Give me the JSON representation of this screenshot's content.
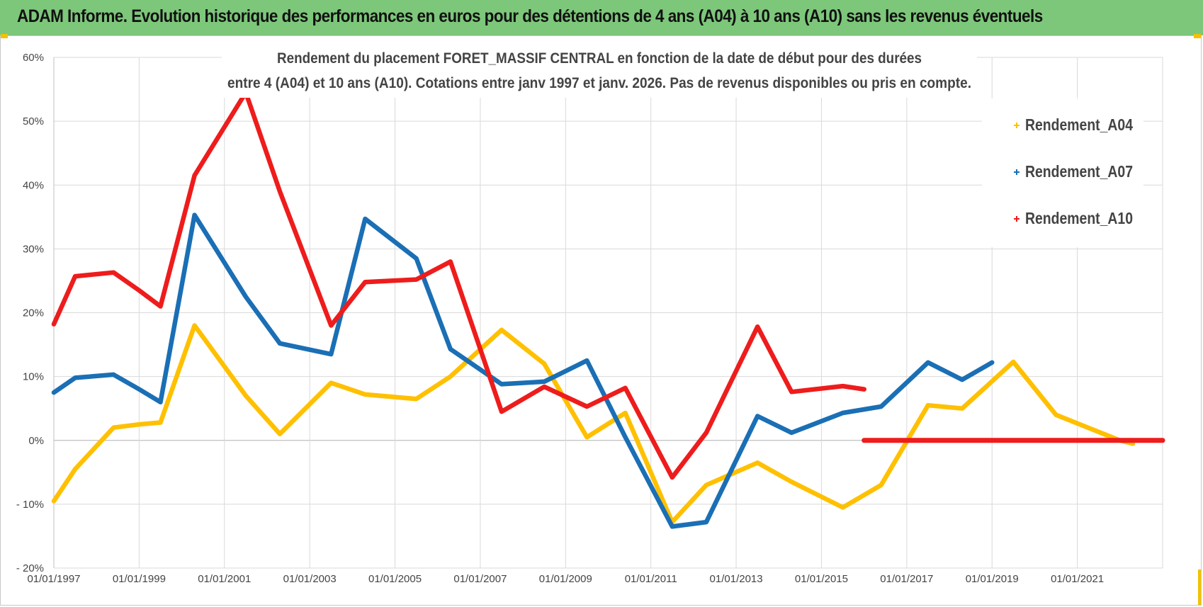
{
  "banner": {
    "title": "ADAM Informe. Evolution historique des performances en euros pour des détentions de 4 ans (A04) à 10 ans (A10) sans les revenus éventuels"
  },
  "chart_data": {
    "type": "line",
    "title_line1": "Rendement du placement FORET_MASSIF CENTRAL en fonction de la date de début pour des durées",
    "title_line2": "entre 4 (A04) et 10 ans (A10).  Cotations entre janv 1997 et janv. 2026. Pas de revenus disponibles ou pris en compte.",
    "xlabel": "",
    "ylabel": "",
    "xlim": [
      1997.0,
      2023.0
    ],
    "ylim": [
      -20,
      60
    ],
    "y_ticks": [
      -20,
      -10,
      0,
      10,
      20,
      30,
      40,
      50,
      60
    ],
    "y_tick_labels": [
      "- 20%",
      "- 10%",
      "0%",
      "10%",
      "20%",
      "30%",
      "40%",
      "50%",
      "60%"
    ],
    "x_ticks": [
      1997,
      1999,
      2001,
      2003,
      2005,
      2007,
      2009,
      2011,
      2013,
      2015,
      2017,
      2019,
      2021
    ],
    "x_tick_labels": [
      "01/01/1997",
      "01/01/1999",
      "01/01/2001",
      "01/01/2003",
      "01/01/2005",
      "01/01/2007",
      "01/01/2009",
      "01/01/2011",
      "01/01/2013",
      "01/01/2015",
      "01/01/2017",
      "01/01/2019",
      "01/01/2021"
    ],
    "vertical_grid": [
      1997,
      1999,
      2001,
      2003,
      2005,
      2007,
      2009,
      2011,
      2013,
      2015,
      2017,
      2019,
      2021,
      2023
    ],
    "legend_position": "top-right",
    "series": [
      {
        "name": "Rendement_A04",
        "color": "#ffc000",
        "points": [
          [
            1997.0,
            -9.5
          ],
          [
            1997.5,
            -4.5
          ],
          [
            1998.4,
            2.0
          ],
          [
            1999.0,
            2.5
          ],
          [
            1999.5,
            2.8
          ],
          [
            2000.3,
            18.0
          ],
          [
            2001.5,
            7.0
          ],
          [
            2002.3,
            1.0
          ],
          [
            2003.5,
            9.0
          ],
          [
            2004.3,
            7.2
          ],
          [
            2005.5,
            6.5
          ],
          [
            2006.3,
            10.0
          ],
          [
            2007.5,
            17.3
          ],
          [
            2008.5,
            12.0
          ],
          [
            2009.5,
            0.5
          ],
          [
            2010.4,
            4.3
          ],
          [
            2011.5,
            -12.8
          ],
          [
            2012.3,
            -7.0
          ],
          [
            2013.5,
            -3.5
          ],
          [
            2014.3,
            -6.5
          ],
          [
            2015.5,
            -10.5
          ],
          [
            2016.4,
            -7.0
          ],
          [
            2017.5,
            5.5
          ],
          [
            2018.3,
            5.0
          ],
          [
            2019.5,
            12.3
          ],
          [
            2020.5,
            4.0
          ],
          [
            2022.0,
            0.0
          ],
          [
            2022.3,
            -0.5
          ]
        ]
      },
      {
        "name": "Rendement_A07",
        "color": "#1a6fb5",
        "points": [
          [
            1997.0,
            7.5
          ],
          [
            1997.5,
            9.8
          ],
          [
            1998.4,
            10.3
          ],
          [
            1999.0,
            8.0
          ],
          [
            1999.5,
            6.0
          ],
          [
            2000.3,
            35.3
          ],
          [
            2001.5,
            22.5
          ],
          [
            2002.3,
            15.2
          ],
          [
            2003.5,
            13.5
          ],
          [
            2004.3,
            34.7
          ],
          [
            2005.5,
            28.5
          ],
          [
            2006.3,
            14.3
          ],
          [
            2007.5,
            8.8
          ],
          [
            2008.5,
            9.2
          ],
          [
            2009.5,
            12.5
          ],
          [
            2010.4,
            0.5
          ],
          [
            2011.5,
            -13.5
          ],
          [
            2012.3,
            -12.8
          ],
          [
            2013.5,
            3.8
          ],
          [
            2014.3,
            1.2
          ],
          [
            2015.5,
            4.3
          ],
          [
            2016.4,
            5.3
          ],
          [
            2017.5,
            12.2
          ],
          [
            2018.3,
            9.5
          ],
          [
            2019.0,
            12.2
          ]
        ]
      },
      {
        "name": "Rendement_A10",
        "color": "#ee1c1c",
        "points": [
          [
            1997.0,
            18.2
          ],
          [
            1997.5,
            25.7
          ],
          [
            1998.4,
            26.3
          ],
          [
            1999.0,
            23.5
          ],
          [
            1999.5,
            21.0
          ],
          [
            2000.3,
            41.5
          ],
          [
            2001.5,
            54.5
          ],
          [
            2002.3,
            39.0
          ],
          [
            2003.5,
            18.0
          ],
          [
            2004.3,
            24.8
          ],
          [
            2005.5,
            25.2
          ],
          [
            2006.3,
            28.0
          ],
          [
            2007.5,
            4.5
          ],
          [
            2008.5,
            8.4
          ],
          [
            2009.5,
            5.3
          ],
          [
            2010.4,
            8.2
          ],
          [
            2011.5,
            -5.8
          ],
          [
            2012.3,
            1.2
          ],
          [
            2013.5,
            17.8
          ],
          [
            2014.3,
            7.6
          ],
          [
            2015.5,
            8.5
          ],
          [
            2016.0,
            8.0
          ]
        ],
        "zero_segment": [
          [
            2016.0,
            0
          ],
          [
            2023.0,
            0
          ]
        ]
      }
    ]
  }
}
